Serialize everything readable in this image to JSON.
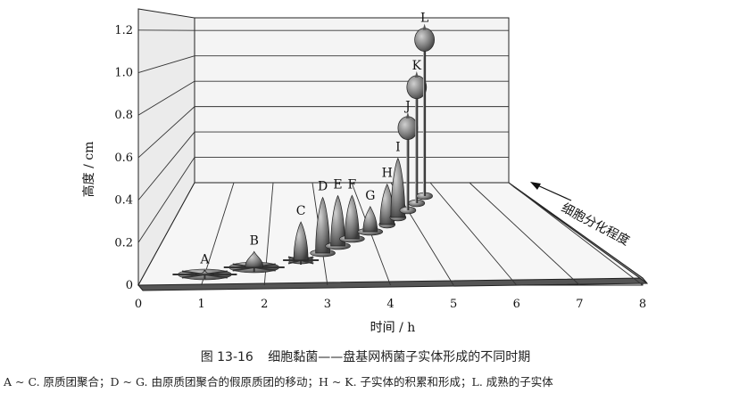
{
  "chart_data": {
    "type": "scatter",
    "ylabel": "高度 / cm",
    "xlabel": "时间 / h",
    "x_ticks": [
      0,
      1,
      2,
      3,
      4,
      5,
      6,
      7,
      8
    ],
    "y_ticks": [
      "0",
      "0.2",
      "0.4",
      "0.6",
      "0.8",
      "1.0",
      "1.2"
    ],
    "xlim": [
      0,
      8
    ],
    "ylim": [
      0,
      1.3
    ],
    "arrow_label": "细胞分化程度",
    "stages": [
      {
        "label": "A",
        "x": 1.0,
        "height": 0.02
      },
      {
        "label": "B",
        "x": 1.8,
        "height": 0.08
      },
      {
        "label": "C",
        "x": 2.6,
        "height": 0.2
      },
      {
        "label": "D",
        "x": 3.0,
        "height": 0.3
      },
      {
        "label": "E",
        "x": 3.3,
        "height": 0.28
      },
      {
        "label": "F",
        "x": 3.6,
        "height": 0.25
      },
      {
        "label": "G",
        "x": 4.0,
        "height": 0.15
      },
      {
        "label": "H",
        "x": 4.4,
        "height": 0.25
      },
      {
        "label": "I",
        "x": 4.7,
        "height": 0.38
      },
      {
        "label": "J",
        "x": 5.0,
        "height": 0.62
      },
      {
        "label": "K",
        "x": 5.3,
        "height": 0.88
      },
      {
        "label": "L",
        "x": 5.6,
        "height": 1.21
      }
    ]
  },
  "caption": {
    "figure_number": "图 13-16",
    "title": "细胞黏菌——盘基网柄菌子实体形成的不同时期"
  },
  "note": "A ~ C. 原质团聚合；D ~ G. 由原质团聚合的假原质团的移动；H ~ K. 子实体的积累和形成；L. 成熟的子实体"
}
